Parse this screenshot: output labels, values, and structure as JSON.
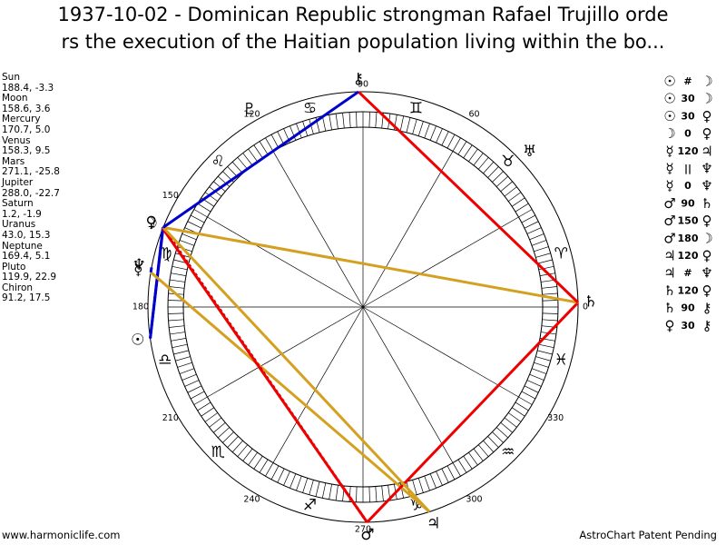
{
  "header": {
    "title_line1": "1937-10-02 - Dominican Republic strongman Rafael Trujillo orde",
    "title_line2": "rs the execution of the Haitian population living within the bo..."
  },
  "planets": [
    {
      "name": "Sun",
      "glyph": "☉",
      "position": "188.4, -3.3"
    },
    {
      "name": "Moon",
      "glyph": "☽",
      "position": "158.6, 3.6"
    },
    {
      "name": "Mercury",
      "glyph": "☿",
      "position": "170.7, 5.0"
    },
    {
      "name": "Venus",
      "glyph": "♀",
      "position": "158.3, 9.5"
    },
    {
      "name": "Mars",
      "glyph": "♂",
      "position": "271.1, -25.8"
    },
    {
      "name": "Jupiter",
      "glyph": "♃",
      "position": "288.0, -22.7"
    },
    {
      "name": "Saturn",
      "glyph": "♄",
      "position": "1.2, -1.9"
    },
    {
      "name": "Uranus",
      "glyph": "♅",
      "position": "43.0, 15.3"
    },
    {
      "name": "Neptune",
      "glyph": "♆",
      "position": "169.4, 5.1"
    },
    {
      "name": "Pluto",
      "glyph": "♇",
      "position": "119.9, 22.9"
    },
    {
      "name": "Chiron",
      "glyph": "⚷",
      "position": "91.2, 17.5"
    }
  ],
  "aspects": [
    {
      "from": "☉",
      "aspect": "#",
      "to": "☽"
    },
    {
      "from": "☉",
      "aspect": "30",
      "to": "☽"
    },
    {
      "from": "☉",
      "aspect": "30",
      "to": "♀"
    },
    {
      "from": "☽",
      "aspect": "0",
      "to": "♀"
    },
    {
      "from": "☿",
      "aspect": "120",
      "to": "♃"
    },
    {
      "from": "☿",
      "aspect": "||",
      "to": "♆"
    },
    {
      "from": "☿",
      "aspect": "0",
      "to": "♆"
    },
    {
      "from": "♂",
      "aspect": "90",
      "to": "♄"
    },
    {
      "from": "♂",
      "aspect": "150",
      "to": "♀"
    },
    {
      "from": "♂",
      "aspect": "180",
      "to": "☽"
    },
    {
      "from": "♃",
      "aspect": "120",
      "to": "♀"
    },
    {
      "from": "♃",
      "aspect": "#",
      "to": "♆"
    },
    {
      "from": "♄",
      "aspect": "120",
      "to": "♀"
    },
    {
      "from": "♄",
      "aspect": "90",
      "to": "⚷"
    },
    {
      "from": "♀",
      "aspect": "30",
      "to": "⚷"
    }
  ],
  "wheel": {
    "degree_labels": [
      "0",
      "60",
      "90",
      "120",
      "150",
      "180",
      "210",
      "240",
      "270",
      "300",
      "330"
    ],
    "signs": [
      "♈",
      "♉",
      "♊",
      "♋",
      "♌",
      "♍",
      "♎",
      "♏",
      "♐",
      "♑",
      "♒",
      "♓"
    ]
  },
  "footer": {
    "left": "www.harmoniclife.com",
    "right": "AstroChart Patent Pending"
  }
}
